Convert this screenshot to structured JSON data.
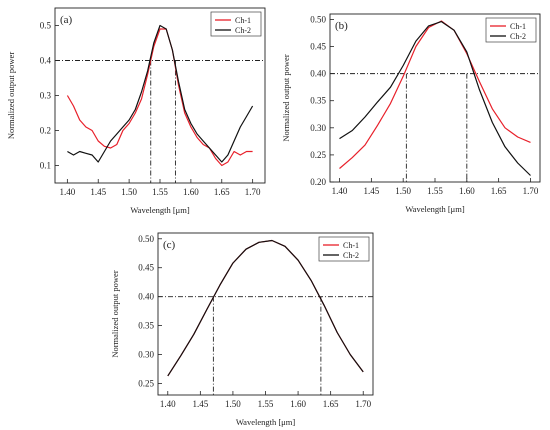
{
  "chart_data": [
    {
      "panel_label": "(a)",
      "type": "line",
      "xlabel": "Wavelength [μm]",
      "ylabel": "Normalized output power",
      "xlim": [
        1.38,
        1.72
      ],
      "ylim": [
        0.05,
        0.55
      ],
      "xticks": [
        1.4,
        1.45,
        1.5,
        1.55,
        1.6,
        1.65,
        1.7
      ],
      "xtick_labels": [
        "1.40",
        "1.45",
        "1.50",
        "1.55",
        "1.60",
        "1.65",
        "1.70"
      ],
      "yticks": [
        0.1,
        0.2,
        0.3,
        0.4,
        0.5
      ],
      "ytick_labels": [
        "0.1",
        "0.2",
        "0.3",
        "0.4",
        "0.5"
      ],
      "legend": "top-right",
      "threshold": {
        "y": 0.4,
        "x_left": 1.535,
        "x_right": 1.575
      },
      "series": [
        {
          "name": "Ch-1",
          "color": "#e8202a",
          "x": [
            1.4,
            1.41,
            1.42,
            1.43,
            1.44,
            1.45,
            1.46,
            1.47,
            1.48,
            1.49,
            1.5,
            1.51,
            1.52,
            1.53,
            1.54,
            1.55,
            1.56,
            1.57,
            1.58,
            1.59,
            1.6,
            1.61,
            1.62,
            1.63,
            1.64,
            1.65,
            1.66,
            1.67,
            1.68,
            1.69,
            1.7
          ],
          "y": [
            0.3,
            0.27,
            0.23,
            0.21,
            0.2,
            0.17,
            0.155,
            0.15,
            0.16,
            0.2,
            0.22,
            0.25,
            0.29,
            0.36,
            0.44,
            0.49,
            0.49,
            0.43,
            0.33,
            0.25,
            0.21,
            0.18,
            0.16,
            0.15,
            0.12,
            0.1,
            0.11,
            0.14,
            0.13,
            0.14,
            0.14
          ]
        },
        {
          "name": "Ch-2",
          "color": "#111111",
          "x": [
            1.4,
            1.41,
            1.42,
            1.43,
            1.44,
            1.45,
            1.46,
            1.47,
            1.48,
            1.49,
            1.5,
            1.51,
            1.52,
            1.53,
            1.54,
            1.55,
            1.56,
            1.57,
            1.58,
            1.59,
            1.6,
            1.61,
            1.62,
            1.63,
            1.64,
            1.65,
            1.66,
            1.67,
            1.68,
            1.69,
            1.7
          ],
          "y": [
            0.14,
            0.13,
            0.14,
            0.135,
            0.13,
            0.11,
            0.14,
            0.17,
            0.19,
            0.21,
            0.23,
            0.26,
            0.31,
            0.37,
            0.45,
            0.5,
            0.49,
            0.43,
            0.34,
            0.26,
            0.22,
            0.19,
            0.17,
            0.15,
            0.13,
            0.11,
            0.13,
            0.17,
            0.21,
            0.24,
            0.27
          ]
        }
      ]
    },
    {
      "panel_label": "(b)",
      "type": "line",
      "xlabel": "Wavelength [μm]",
      "ylabel": "Normalized output power",
      "xlim": [
        1.385,
        1.715
      ],
      "ylim": [
        0.2,
        0.51
      ],
      "xticks": [
        1.4,
        1.45,
        1.5,
        1.55,
        1.6,
        1.65,
        1.7
      ],
      "xtick_labels": [
        "1.40",
        "1.45",
        "1.50",
        "1.55",
        "1.60",
        "1.65",
        "1.70"
      ],
      "yticks": [
        0.2,
        0.25,
        0.3,
        0.35,
        0.4,
        0.45,
        0.5
      ],
      "ytick_labels": [
        "0.20",
        "0.25",
        "0.30",
        "0.35",
        "0.40",
        "0.45",
        "0.50"
      ],
      "legend": "top-right",
      "threshold": {
        "y": 0.4,
        "x_left": 1.505,
        "x_right": 1.6
      },
      "series": [
        {
          "name": "Ch-1",
          "color": "#e8202a",
          "x": [
            1.4,
            1.42,
            1.44,
            1.46,
            1.48,
            1.5,
            1.52,
            1.54,
            1.56,
            1.58,
            1.6,
            1.62,
            1.64,
            1.66,
            1.68,
            1.7
          ],
          "y": [
            0.225,
            0.245,
            0.268,
            0.305,
            0.345,
            0.395,
            0.45,
            0.485,
            0.497,
            0.48,
            0.437,
            0.385,
            0.335,
            0.3,
            0.283,
            0.273
          ]
        },
        {
          "name": "Ch-2",
          "color": "#111111",
          "x": [
            1.4,
            1.42,
            1.44,
            1.46,
            1.48,
            1.5,
            1.52,
            1.54,
            1.56,
            1.58,
            1.6,
            1.62,
            1.64,
            1.66,
            1.68,
            1.7
          ],
          "y": [
            0.28,
            0.295,
            0.32,
            0.348,
            0.375,
            0.415,
            0.46,
            0.488,
            0.496,
            0.48,
            0.44,
            0.37,
            0.31,
            0.265,
            0.235,
            0.212
          ]
        }
      ]
    },
    {
      "panel_label": "(c)",
      "type": "line",
      "xlabel": "Wavelength [μm]",
      "ylabel": "Normalized output power",
      "xlim": [
        1.385,
        1.715
      ],
      "ylim": [
        0.23,
        0.51
      ],
      "xticks": [
        1.4,
        1.45,
        1.5,
        1.55,
        1.6,
        1.65,
        1.7
      ],
      "xtick_labels": [
        "1.40",
        "1.45",
        "1.50",
        "1.55",
        "1.60",
        "1.65",
        "1.70"
      ],
      "yticks": [
        0.25,
        0.3,
        0.35,
        0.4,
        0.45,
        0.5
      ],
      "ytick_labels": [
        "0.25",
        "0.30",
        "0.35",
        "0.40",
        "0.45",
        "0.50"
      ],
      "legend": "top-right",
      "threshold": {
        "y": 0.4,
        "x_left": 1.47,
        "x_right": 1.635
      },
      "series": [
        {
          "name": "Ch-1",
          "color": "#e8202a",
          "x": [
            1.4,
            1.42,
            1.44,
            1.46,
            1.48,
            1.5,
            1.52,
            1.54,
            1.56,
            1.58,
            1.6,
            1.62,
            1.64,
            1.66,
            1.68,
            1.7
          ],
          "y": [
            0.263,
            0.298,
            0.335,
            0.378,
            0.42,
            0.458,
            0.482,
            0.494,
            0.497,
            0.487,
            0.463,
            0.428,
            0.385,
            0.338,
            0.3,
            0.27
          ]
        },
        {
          "name": "Ch-2",
          "color": "#111111",
          "x": [
            1.4,
            1.42,
            1.44,
            1.46,
            1.48,
            1.5,
            1.52,
            1.54,
            1.56,
            1.58,
            1.6,
            1.62,
            1.64,
            1.66,
            1.68,
            1.7
          ],
          "y": [
            0.263,
            0.298,
            0.335,
            0.378,
            0.42,
            0.458,
            0.482,
            0.494,
            0.497,
            0.487,
            0.463,
            0.428,
            0.385,
            0.338,
            0.3,
            0.27
          ]
        }
      ]
    }
  ]
}
